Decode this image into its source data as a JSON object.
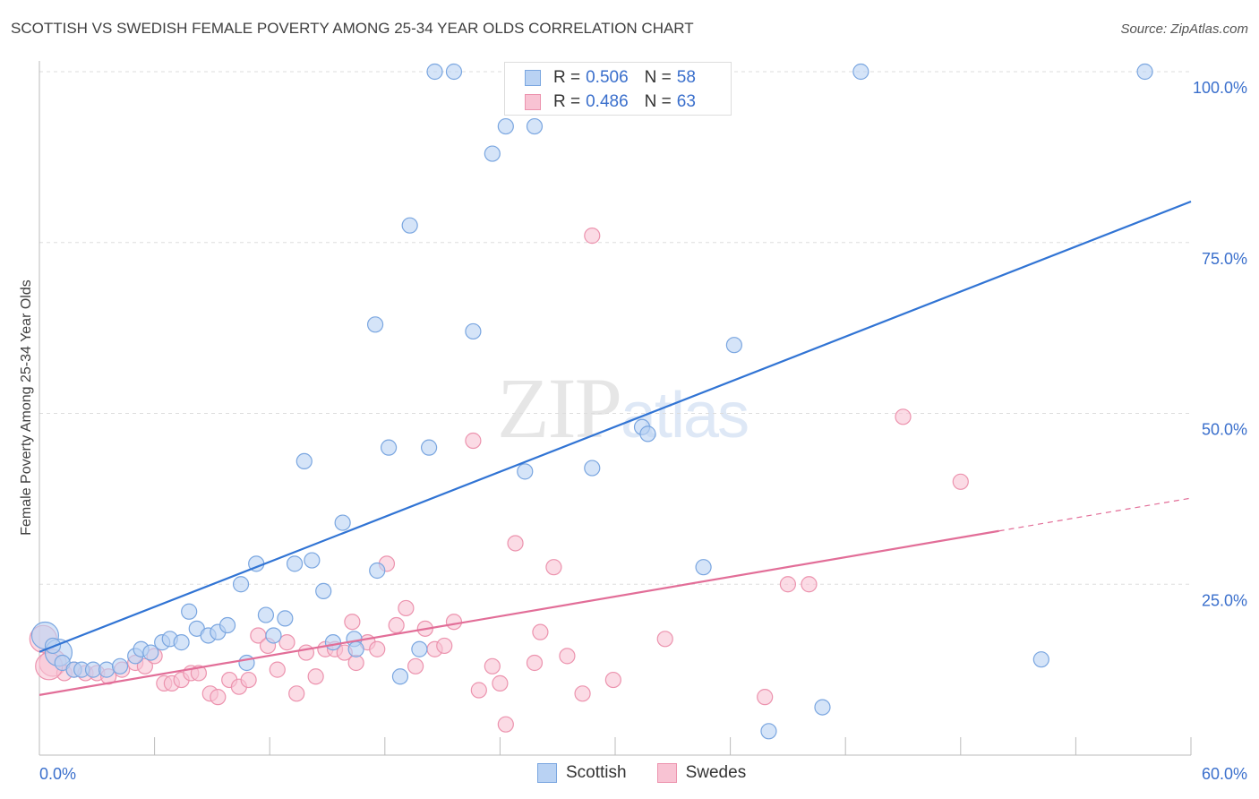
{
  "title": "SCOTTISH VS SWEDISH FEMALE POVERTY AMONG 25-34 YEAR OLDS CORRELATION CHART",
  "source": "Source: ZipAtlas.com",
  "watermark": {
    "zip": "ZIP",
    "atlas": "atlas"
  },
  "legend": {
    "r_label": "R =",
    "n_label": "N =",
    "series": [
      {
        "name": "Scottish",
        "r": "0.506",
        "n": "58"
      },
      {
        "name": "Swedes",
        "r": "0.486",
        "n": "63"
      }
    ]
  },
  "colors": {
    "scottish_fill": "#b9d2f3",
    "scottish_stroke": "#7aa6e0",
    "scottish_line": "#3174d4",
    "swedes_fill": "#f8c3d3",
    "swedes_stroke": "#ec93ae",
    "swedes_line": "#e26e98",
    "axis_text": "#3a6fcc",
    "grid": "#dddddd"
  },
  "chart_data": {
    "type": "scatter",
    "title": "SCOTTISH VS SWEDISH FEMALE POVERTY AMONG 25-34 YEAR OLDS CORRELATION CHART",
    "xlabel": "",
    "ylabel": "Female Poverty Among 25-34 Year Olds",
    "xlim": [
      0,
      60
    ],
    "ylim": [
      0,
      100
    ],
    "x_tick_labels": [
      "0.0%",
      "60.0%"
    ],
    "y_ticks": [
      25,
      50,
      75,
      100
    ],
    "y_tick_labels": [
      "25.0%",
      "50.0%",
      "75.0%",
      "100.0%"
    ],
    "grid": true,
    "legend_position": "top-center",
    "series": [
      {
        "name": "Scottish",
        "r": 0.506,
        "n": 58,
        "trend": {
          "x": [
            0,
            60
          ],
          "y": [
            15.1,
            81.0
          ]
        },
        "points": [
          [
            0.3,
            17.5
          ],
          [
            1.0,
            15.0
          ],
          [
            1.2,
            13.5
          ],
          [
            1.8,
            12.5
          ],
          [
            2.2,
            12.5
          ],
          [
            2.8,
            12.5
          ],
          [
            3.5,
            12.5
          ],
          [
            4.2,
            13.0
          ],
          [
            5.0,
            14.5
          ],
          [
            5.3,
            15.5
          ],
          [
            5.8,
            15.0
          ],
          [
            6.4,
            16.5
          ],
          [
            6.8,
            17.0
          ],
          [
            7.4,
            16.5
          ],
          [
            7.8,
            21.0
          ],
          [
            8.2,
            18.5
          ],
          [
            8.8,
            17.5
          ],
          [
            9.3,
            18.0
          ],
          [
            9.8,
            19.0
          ],
          [
            10.5,
            25.0
          ],
          [
            10.8,
            13.5
          ],
          [
            11.3,
            28.0
          ],
          [
            11.8,
            20.5
          ],
          [
            12.2,
            17.5
          ],
          [
            12.8,
            20.0
          ],
          [
            13.3,
            28.0
          ],
          [
            13.8,
            43.0
          ],
          [
            14.2,
            28.5
          ],
          [
            14.8,
            24.0
          ],
          [
            15.3,
            16.5
          ],
          [
            15.8,
            34.0
          ],
          [
            16.4,
            17.0
          ],
          [
            16.5,
            15.5
          ],
          [
            17.5,
            63.0
          ],
          [
            17.6,
            27.0
          ],
          [
            18.2,
            45.0
          ],
          [
            18.8,
            11.5
          ],
          [
            19.3,
            77.5
          ],
          [
            19.8,
            15.5
          ],
          [
            20.3,
            45.0
          ],
          [
            20.6,
            100.0
          ],
          [
            21.6,
            100.0
          ],
          [
            22.6,
            62.0
          ],
          [
            23.6,
            88.0
          ],
          [
            24.3,
            92.0
          ],
          [
            25.3,
            41.5
          ],
          [
            25.8,
            92.0
          ],
          [
            28.8,
            42.0
          ],
          [
            31.4,
            48.0
          ],
          [
            31.7,
            47.0
          ],
          [
            34.6,
            27.5
          ],
          [
            36.2,
            60.0
          ],
          [
            38.0,
            3.5
          ],
          [
            40.8,
            7.0
          ],
          [
            42.8,
            100.0
          ],
          [
            52.2,
            14.0
          ],
          [
            57.6,
            100.0
          ],
          [
            0.7,
            16.0
          ]
        ]
      },
      {
        "name": "Swedes",
        "r": 0.486,
        "n": 63,
        "trend": {
          "x": [
            0,
            50
          ],
          "y": [
            8.8,
            32.8
          ]
        },
        "trend_dashed": {
          "x": [
            50,
            60
          ],
          "y": [
            32.8,
            37.6
          ]
        },
        "points": [
          [
            0.2,
            17.0
          ],
          [
            0.7,
            13.5
          ],
          [
            1.3,
            12.0
          ],
          [
            1.8,
            12.5
          ],
          [
            2.4,
            12.0
          ],
          [
            3.0,
            12.0
          ],
          [
            3.6,
            11.5
          ],
          [
            4.3,
            12.5
          ],
          [
            5.0,
            13.5
          ],
          [
            5.5,
            13.0
          ],
          [
            6.0,
            14.5
          ],
          [
            6.5,
            10.5
          ],
          [
            6.9,
            10.5
          ],
          [
            7.4,
            11.0
          ],
          [
            7.9,
            12.0
          ],
          [
            8.3,
            12.0
          ],
          [
            8.9,
            9.0
          ],
          [
            9.3,
            8.5
          ],
          [
            9.9,
            11.0
          ],
          [
            10.4,
            10.0
          ],
          [
            10.9,
            11.0
          ],
          [
            11.4,
            17.5
          ],
          [
            11.9,
            16.0
          ],
          [
            12.4,
            12.5
          ],
          [
            12.9,
            16.5
          ],
          [
            13.4,
            9.0
          ],
          [
            13.9,
            15.0
          ],
          [
            14.4,
            11.5
          ],
          [
            14.9,
            15.5
          ],
          [
            15.4,
            15.5
          ],
          [
            15.9,
            15.0
          ],
          [
            16.3,
            19.5
          ],
          [
            16.5,
            13.5
          ],
          [
            17.1,
            16.5
          ],
          [
            17.6,
            15.5
          ],
          [
            18.1,
            28.0
          ],
          [
            18.6,
            19.0
          ],
          [
            19.1,
            21.5
          ],
          [
            19.6,
            13.0
          ],
          [
            20.1,
            18.5
          ],
          [
            20.6,
            15.5
          ],
          [
            21.1,
            16.0
          ],
          [
            21.6,
            19.5
          ],
          [
            22.6,
            46.0
          ],
          [
            22.9,
            9.5
          ],
          [
            23.6,
            13.0
          ],
          [
            24.0,
            10.5
          ],
          [
            24.3,
            4.5
          ],
          [
            24.8,
            31.0
          ],
          [
            25.8,
            13.5
          ],
          [
            26.1,
            18.0
          ],
          [
            26.8,
            27.5
          ],
          [
            27.5,
            14.5
          ],
          [
            28.3,
            9.0
          ],
          [
            28.8,
            76.0
          ],
          [
            29.9,
            11.0
          ],
          [
            32.6,
            17.0
          ],
          [
            37.8,
            8.5
          ],
          [
            39.0,
            25.0
          ],
          [
            40.1,
            25.0
          ],
          [
            45.0,
            49.5
          ],
          [
            48.0,
            40.0
          ],
          [
            0.5,
            13.0
          ]
        ]
      }
    ]
  }
}
